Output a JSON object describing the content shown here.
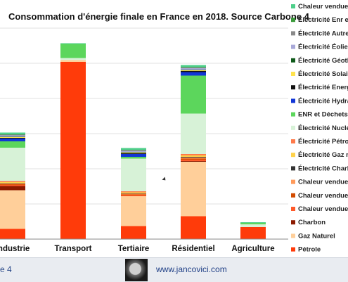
{
  "chart_data": {
    "type": "bar",
    "stacked": true,
    "title": "Consommation d'énergie finale en France en 2018. Source Carbone 4",
    "categories": [
      "Industrie",
      "Transport",
      "Tertiaire",
      "Résidentiel",
      "Agriculture"
    ],
    "grid": true,
    "legend_position": "right",
    "ylim": [
      0,
      600
    ],
    "series": [
      {
        "name": "Pétrole",
        "color": "#ff3b0a",
        "values": [
          29,
          504,
          37,
          65,
          34
        ]
      },
      {
        "name": "Gaz Naturel",
        "color": "#ffcf9a",
        "values": [
          110,
          5,
          85,
          155,
          0
        ]
      },
      {
        "name": "Charbon",
        "color": "#8c1a00",
        "values": [
          12,
          0,
          0,
          2,
          0
        ]
      },
      {
        "name": "Chaleur vendue P",
        "color": "#ff5a2a",
        "values": [
          3,
          0,
          3,
          4,
          0
        ]
      },
      {
        "name": "Chaleur vendue C",
        "color": "#d24b00",
        "values": [
          2,
          0,
          2,
          3,
          0
        ]
      },
      {
        "name": "Chaleur vendue C",
        "color": "#ff9a5a",
        "values": [
          2,
          0,
          2,
          3,
          0
        ]
      },
      {
        "name": "Électricité Charbo",
        "color": "#333333",
        "values": [
          1,
          0,
          1,
          2,
          0
        ]
      },
      {
        "name": "Électricité Gaz na",
        "color": "#ffd24a",
        "values": [
          3,
          0,
          3,
          4,
          0
        ]
      },
      {
        "name": "Électricité Pétrole",
        "color": "#ff7a4a",
        "values": [
          3,
          0,
          3,
          4,
          0
        ]
      },
      {
        "name": "Électricité Nucléa",
        "color": "#d7f2d7",
        "values": [
          95,
          6,
          93,
          115,
          8
        ]
      },
      {
        "name": "ENR et Déchets",
        "color": "#5cd65c",
        "values": [
          18,
          40,
          5,
          108,
          4
        ]
      },
      {
        "name": "Électricité Hydrau",
        "color": "#1236d6",
        "values": [
          8,
          0,
          8,
          10,
          0
        ]
      },
      {
        "name": "Électricité Energi",
        "color": "#111111",
        "values": [
          2,
          0,
          2,
          3,
          0
        ]
      },
      {
        "name": "Électricité Solaire",
        "color": "#ffe34d",
        "values": [
          2,
          0,
          2,
          2,
          0
        ]
      },
      {
        "name": "Électricité Géothe",
        "color": "#0f5a1a",
        "values": [
          1,
          0,
          1,
          1,
          0
        ]
      },
      {
        "name": "Électricité Éolien",
        "color": "#a8a8d8",
        "values": [
          4,
          0,
          4,
          5,
          0
        ]
      },
      {
        "name": "Électricité Autres",
        "color": "#8a8a8a",
        "values": [
          2,
          0,
          2,
          2,
          0
        ]
      },
      {
        "name": "Électricité Enr et",
        "color": "#3a9a3a",
        "values": [
          1,
          0,
          1,
          1,
          0
        ]
      },
      {
        "name": "Chaleur vendue E",
        "color": "#4ecf8a",
        "values": [
          5,
          2,
          5,
          6,
          2
        ]
      }
    ]
  },
  "footer": {
    "slide_number": "e 4",
    "website": "www.jancovici.com"
  }
}
